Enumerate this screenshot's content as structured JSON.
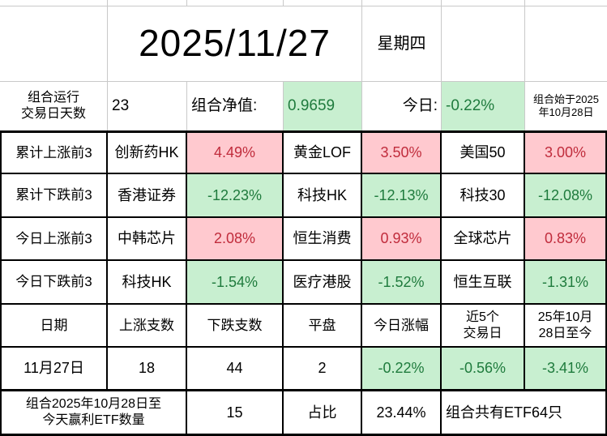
{
  "app": {
    "kind": "spreadsheet-portfolio-dashboard"
  },
  "colors": {
    "up_bg": "#ffc9cf",
    "up_text": "#c02c3c",
    "down_bg": "#c8efd0",
    "down_text": "#1f7b3d",
    "gridline": "#c9c9c9",
    "table_border": "#000000"
  },
  "title": {
    "date": "2025/11/27",
    "weekday": "星期四"
  },
  "summary": {
    "run_label": "组合运行\n交易日天数",
    "run_days": "23",
    "nav_label": "组合净值:",
    "nav_value": "0.9659",
    "today_label": "今日:",
    "today_change": "-0.22%",
    "start_note": "组合始于2025\n年10月28日"
  },
  "rankings": [
    {
      "label": "累计上涨前3",
      "entries": [
        {
          "name": "创新药HK",
          "value": "4.49%"
        },
        {
          "name": "黄金LOF",
          "value": "3.50%"
        },
        {
          "name": "美国50",
          "value": "3.00%"
        }
      ]
    },
    {
      "label": "累计下跌前3",
      "entries": [
        {
          "name": "香港证券",
          "value": "-12.23%"
        },
        {
          "name": "科技HK",
          "value": "-12.13%"
        },
        {
          "name": "科技30",
          "value": "-12.08%"
        }
      ]
    },
    {
      "label": "今日上涨前3",
      "entries": [
        {
          "name": "中韩芯片",
          "value": "2.08%"
        },
        {
          "name": "恒生消费",
          "value": "0.93%"
        },
        {
          "name": "全球芯片",
          "value": "0.83%"
        }
      ]
    },
    {
      "label": "今日下跌前3",
      "entries": [
        {
          "name": "科技HK",
          "value": "-1.54%"
        },
        {
          "name": "医疗港股",
          "value": "-1.52%"
        },
        {
          "name": "恒生互联",
          "value": "-1.31%"
        }
      ]
    }
  ],
  "daily_stats": {
    "headers": [
      "日期",
      "上涨支数",
      "下跌支数",
      "平盘",
      "今日涨幅",
      "近5个\n交易日",
      "25年10月\n28日至今"
    ],
    "row": {
      "date": "11月27日",
      "up": "18",
      "down": "44",
      "flat": "2",
      "today": "-0.22%",
      "last5": "-0.56%",
      "since_start": "-3.41%"
    }
  },
  "footer": {
    "win_label": "组合2025年10月28日至\n今天赢利ETF数量",
    "win_count": "15",
    "ratio_label": "占比",
    "ratio_value": "23.44%",
    "total_note": "组合共有ETF64只"
  }
}
